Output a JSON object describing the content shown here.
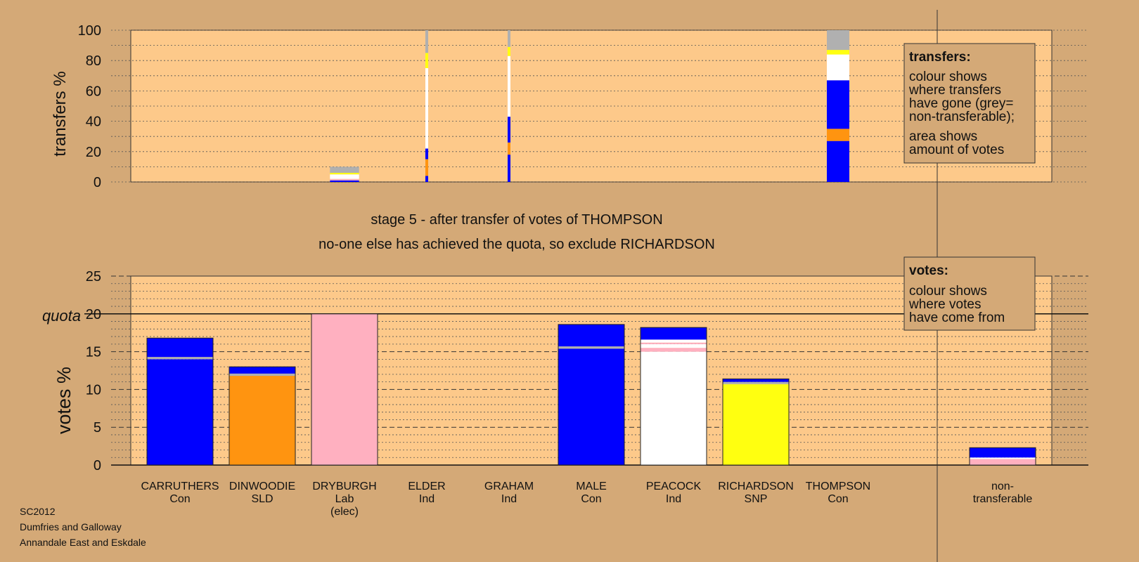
{
  "stage_text": "stage 5 - after transfer of votes of THOMPSON",
  "exclude_text": "no-one else has achieved the quota, so exclude RICHARDSON",
  "footer": [
    "SC2012",
    "Dumfries and Galloway",
    "Annandale East and Eskdale"
  ],
  "legend_transfers": {
    "title": "transfers:",
    "lines": [
      "colour shows",
      "where transfers",
      "have gone (grey=",
      "non-transferable);",
      "area shows",
      "amount of votes"
    ]
  },
  "legend_votes": {
    "title": "votes:",
    "lines": [
      "colour shows",
      "where votes",
      "have come from"
    ]
  },
  "colors": {
    "page_bg": "#d4a977",
    "plot_bg": "#fdc98a",
    "Con": "#0000ff",
    "SLD": "#ff9410",
    "Lab": "#ffb0c0",
    "SNP": "#ffff10",
    "Ind": "#ffffff",
    "nontransferable": "#b0b0b0"
  },
  "chart_data": [
    {
      "type": "bar",
      "ylabel": "transfers %",
      "ylim": [
        0,
        100
      ],
      "yticks": [
        0,
        20,
        40,
        60,
        80,
        100
      ],
      "grid": true,
      "note": "stacked transfer bars; width proportional to transferred amount",
      "bars": [
        {
          "category": "DRYBURGH",
          "width_units": 0.44,
          "segments": [
            {
              "color": "Con",
              "from": 0,
              "to": 1
            },
            {
              "color": "Lab",
              "from": 1,
              "to": 2
            },
            {
              "color": "Ind",
              "from": 2,
              "to": 5
            },
            {
              "color": "SNP",
              "from": 5,
              "to": 6
            },
            {
              "color": "nontransferable",
              "from": 6,
              "to": 10
            }
          ]
        },
        {
          "category": "ELDER",
          "width_units": 0.03,
          "segments": [
            {
              "color": "Con",
              "from": 0,
              "to": 4
            },
            {
              "color": "SLD",
              "from": 4,
              "to": 15
            },
            {
              "color": "Con",
              "from": 15,
              "to": 22
            },
            {
              "color": "Ind",
              "from": 22,
              "to": 75
            },
            {
              "color": "SNP",
              "from": 75,
              "to": 85
            },
            {
              "color": "nontransferable",
              "from": 85,
              "to": 100
            }
          ]
        },
        {
          "category": "GRAHAM",
          "width_units": 0.03,
          "segments": [
            {
              "color": "Con",
              "from": 0,
              "to": 18
            },
            {
              "color": "SLD",
              "from": 18,
              "to": 26
            },
            {
              "color": "Con",
              "from": 26,
              "to": 43
            },
            {
              "color": "Ind",
              "from": 43,
              "to": 83
            },
            {
              "color": "SNP",
              "from": 83,
              "to": 89
            },
            {
              "color": "nontransferable",
              "from": 89,
              "to": 100
            }
          ]
        },
        {
          "category": "THOMPSON",
          "width_units": 0.34,
          "segments": [
            {
              "color": "Con",
              "from": 0,
              "to": 27
            },
            {
              "color": "SLD",
              "from": 27,
              "to": 35
            },
            {
              "color": "Con",
              "from": 35,
              "to": 67
            },
            {
              "color": "Ind",
              "from": 67,
              "to": 84
            },
            {
              "color": "SNP",
              "from": 84,
              "to": 87
            },
            {
              "color": "nontransferable",
              "from": 87,
              "to": 100
            }
          ]
        }
      ]
    },
    {
      "type": "bar",
      "ylabel": "votes %",
      "ylim": [
        0,
        25
      ],
      "yticks": [
        0,
        5,
        10,
        15,
        20,
        25
      ],
      "quota": 20,
      "quota_label": "quota",
      "grid": true,
      "categories": [
        {
          "name": "CARRUTHERS",
          "party": "Con",
          "extra": ""
        },
        {
          "name": "DINWOODIE",
          "party": "SLD",
          "extra": ""
        },
        {
          "name": "DRYBURGH",
          "party": "Lab",
          "extra": "(elec)"
        },
        {
          "name": "ELDER",
          "party": "Ind",
          "extra": ""
        },
        {
          "name": "GRAHAM",
          "party": "Ind",
          "extra": ""
        },
        {
          "name": "MALE",
          "party": "Con",
          "extra": ""
        },
        {
          "name": "PEACOCK",
          "party": "Ind",
          "extra": ""
        },
        {
          "name": "RICHARDSON",
          "party": "SNP",
          "extra": ""
        },
        {
          "name": "THOMPSON",
          "party": "Con",
          "extra": ""
        }
      ],
      "nontransferable_label": [
        "non-",
        "transferable"
      ],
      "bars": [
        {
          "category": "CARRUTHERS",
          "segments": [
            {
              "color": "Con",
              "from": 0,
              "to": 14.0
            },
            {
              "color": "nontransferable",
              "from": 14.0,
              "to": 14.3
            },
            {
              "color": "Con",
              "from": 14.3,
              "to": 16.8
            }
          ]
        },
        {
          "category": "DINWOODIE",
          "segments": [
            {
              "color": "SLD",
              "from": 0,
              "to": 11.8
            },
            {
              "color": "nontransferable",
              "from": 11.8,
              "to": 12.1
            },
            {
              "color": "Con",
              "from": 12.1,
              "to": 13.0
            }
          ]
        },
        {
          "category": "DRYBURGH",
          "segments": [
            {
              "color": "Lab",
              "from": 0,
              "to": 20.0
            }
          ]
        },
        {
          "category": "ELDER",
          "segments": []
        },
        {
          "category": "GRAHAM",
          "segments": []
        },
        {
          "category": "MALE",
          "segments": [
            {
              "color": "Con",
              "from": 0,
              "to": 15.4
            },
            {
              "color": "nontransferable",
              "from": 15.4,
              "to": 15.7
            },
            {
              "color": "Con",
              "from": 15.7,
              "to": 18.6
            }
          ]
        },
        {
          "category": "PEACOCK",
          "segments": [
            {
              "color": "Ind",
              "from": 0,
              "to": 15.0
            },
            {
              "color": "Lab",
              "from": 15.0,
              "to": 15.5
            },
            {
              "color": "Ind",
              "from": 15.5,
              "to": 16.0
            },
            {
              "color": "Lab",
              "from": 16.0,
              "to": 16.2
            },
            {
              "color": "Ind",
              "from": 16.2,
              "to": 16.6
            },
            {
              "color": "Con",
              "from": 16.6,
              "to": 18.2
            }
          ]
        },
        {
          "category": "RICHARDSON",
          "segments": [
            {
              "color": "SNP",
              "from": 0,
              "to": 10.7
            },
            {
              "color": "nontransferable",
              "from": 10.7,
              "to": 11.0
            },
            {
              "color": "Con",
              "from": 11.0,
              "to": 11.4
            }
          ]
        },
        {
          "category": "THOMPSON",
          "segments": []
        },
        {
          "category": "non-transferable",
          "segments": [
            {
              "color": "Lab",
              "from": 0,
              "to": 0.8
            },
            {
              "color": "Ind",
              "from": 0.8,
              "to": 1.0
            },
            {
              "color": "Con",
              "from": 1.0,
              "to": 2.3
            }
          ]
        }
      ]
    }
  ]
}
